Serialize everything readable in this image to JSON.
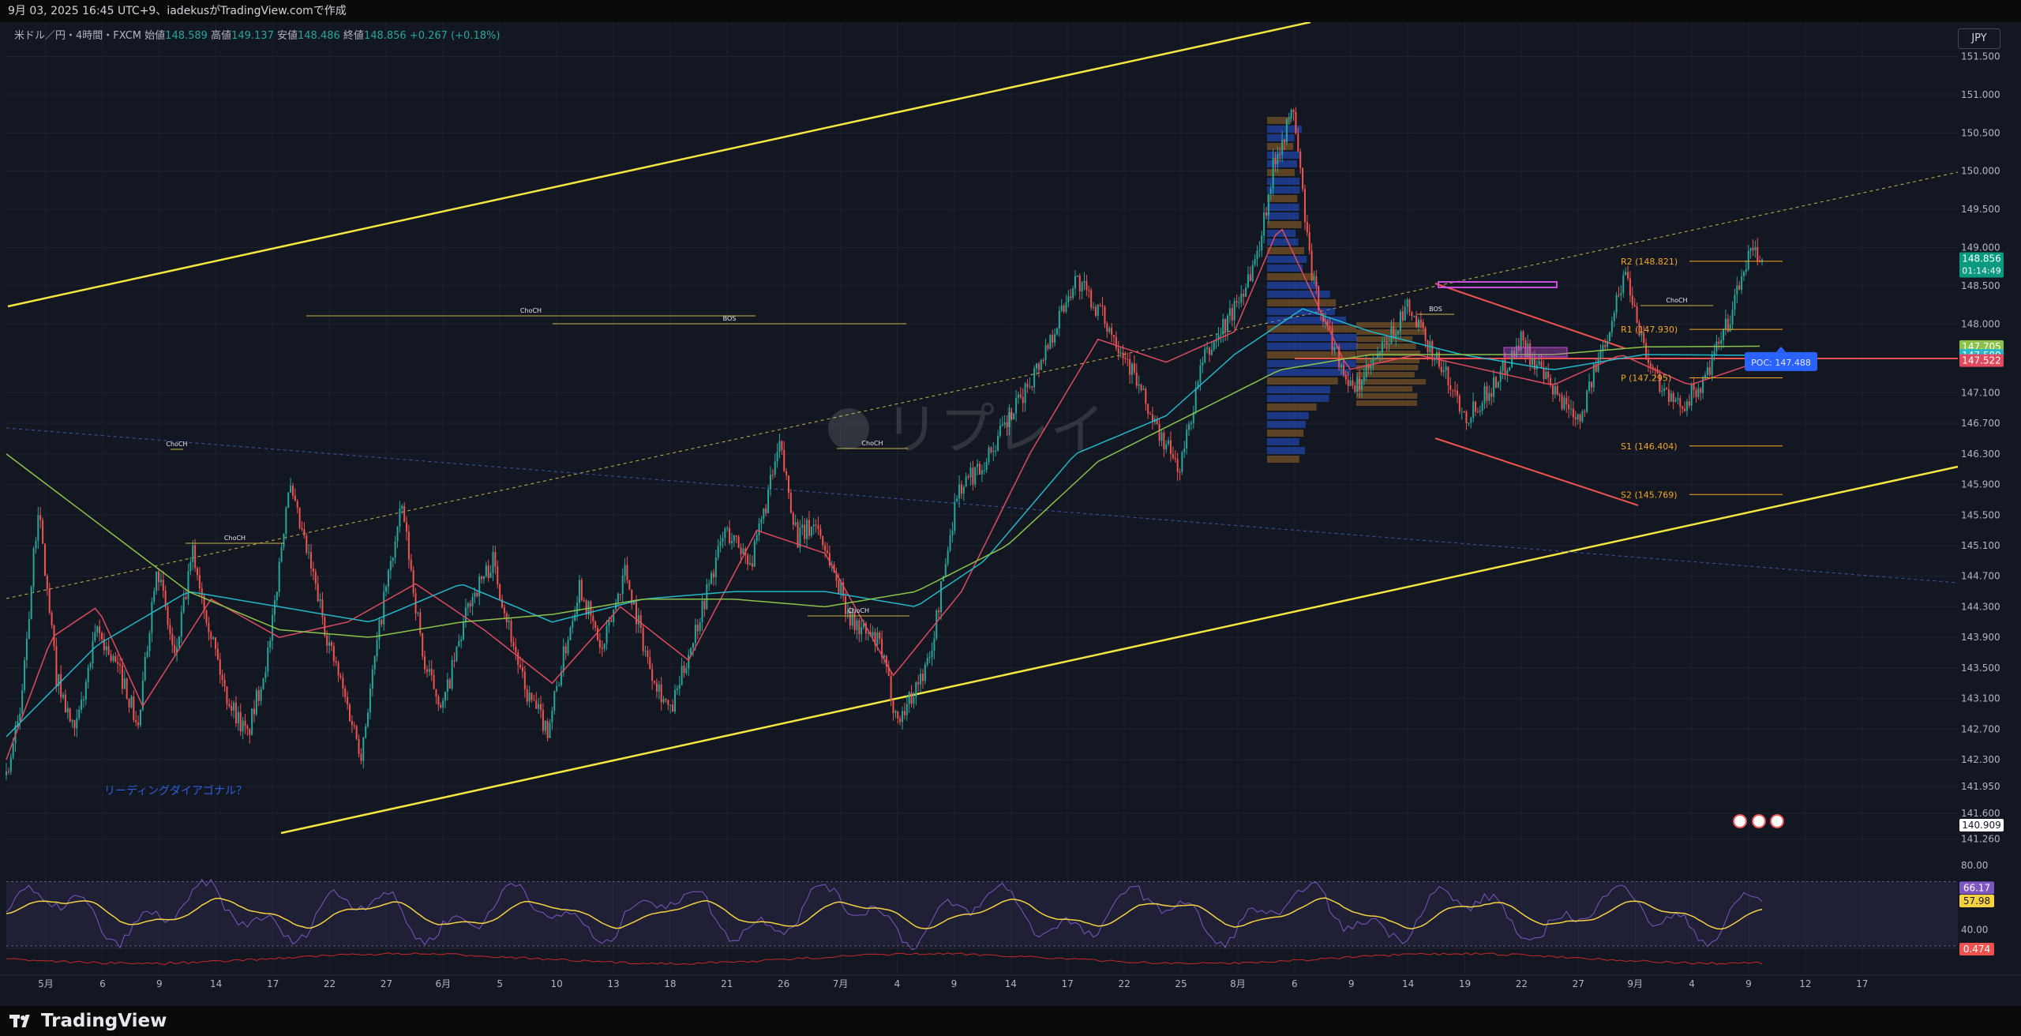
{
  "header": {
    "caption": "9月 03, 2025 16:45 UTC+9、iadekusがTradingView.comで作成"
  },
  "symbol": {
    "name": "米ドル／円・4時間・FXCM",
    "open_label": "始値",
    "open": "148.589",
    "high_label": "高値",
    "high": "149.137",
    "low_label": "安値",
    "low": "148.486",
    "close_label": "終値",
    "close": "148.856",
    "change": "+0.267 (+0.18%)"
  },
  "currency_button": "JPY",
  "watermark": "リプレイ",
  "brand": "TradingView",
  "colors": {
    "background": "#131722",
    "up": "#26a69a",
    "down": "#ef5350",
    "channel": "#f5e642",
    "ma_fast": "#e04a5f",
    "ma_mid": "#22b7c9",
    "ma_slow": "#8bc34a",
    "rsi": "#7e57c2",
    "rsi_ma": "#f5d242",
    "pivot": "#f5a623",
    "poc": "#2962ff"
  },
  "chart_data": {
    "type": "candlestick",
    "timeframe": "4時間",
    "ylim": [
      141.05,
      151.95
    ],
    "y_ticks": [
      "151.500",
      "151.000",
      "150.500",
      "150.000",
      "149.500",
      "149.000",
      "148.500",
      "148.000",
      "147.100",
      "146.700",
      "146.300",
      "145.900",
      "145.500",
      "145.100",
      "144.700",
      "144.300",
      "143.900",
      "143.500",
      "143.100",
      "142.700",
      "142.300",
      "141.950",
      "141.600",
      "141.260"
    ],
    "x_ticks": [
      "5月",
      "6",
      "9",
      "14",
      "17",
      "22",
      "27",
      "6月",
      "5",
      "10",
      "13",
      "18",
      "21",
      "26",
      "7月",
      "4",
      "9",
      "14",
      "17",
      "22",
      "25",
      "8月",
      "6",
      "9",
      "14",
      "19",
      "22",
      "27",
      "9月",
      "4",
      "9",
      "12",
      "17"
    ],
    "price_labels": [
      {
        "label": "148.856",
        "sub": "01:14:49",
        "value": 148.856,
        "color": "#089981"
      },
      {
        "label": "147.705",
        "value": 147.705,
        "color": "#8bc34a"
      },
      {
        "label": "147.589",
        "value": 147.589,
        "color": "#22b7c9"
      },
      {
        "label": "147.522",
        "value": 147.522,
        "color": "#e04a5f"
      },
      {
        "label": "140.909",
        "value": 140.909,
        "color": "#ffffff"
      }
    ],
    "pivots": [
      {
        "label": "R2 (148.821)",
        "value": 148.821
      },
      {
        "label": "R1 (147.930)",
        "value": 147.93
      },
      {
        "label": "P (147.295)",
        "value": 147.295
      },
      {
        "label": "S1 (146.404)",
        "value": 146.404
      },
      {
        "label": "S2 (145.769)",
        "value": 145.769
      }
    ],
    "poc": {
      "label": "POC: 147.488",
      "value": 147.488
    },
    "annotations": [
      {
        "text": "リーディングダイアゴナル？",
        "type": "note"
      },
      {
        "text": "ChoCH",
        "type": "structure"
      },
      {
        "text": "BOS",
        "type": "structure"
      }
    ],
    "series": [
      {
        "name": "",
        "kind": "ohlc",
        "anchors": [
          [
            0,
            142.1
          ],
          [
            6,
            142.9
          ],
          [
            14,
            145.6
          ],
          [
            22,
            143.4
          ],
          [
            30,
            142.6
          ],
          [
            40,
            144.0
          ],
          [
            52,
            143.3
          ],
          [
            58,
            142.7
          ],
          [
            66,
            144.9
          ],
          [
            74,
            143.6
          ],
          [
            82,
            145.0
          ],
          [
            96,
            143.2
          ],
          [
            106,
            142.6
          ],
          [
            116,
            143.8
          ],
          [
            124,
            145.9
          ],
          [
            134,
            144.8
          ],
          [
            142,
            143.8
          ],
          [
            156,
            142.4
          ],
          [
            166,
            144.4
          ],
          [
            174,
            145.6
          ],
          [
            184,
            143.5
          ],
          [
            192,
            143.0
          ],
          [
            204,
            144.4
          ],
          [
            214,
            144.9
          ],
          [
            228,
            143.2
          ],
          [
            238,
            142.7
          ],
          [
            252,
            144.6
          ],
          [
            262,
            143.7
          ],
          [
            272,
            144.8
          ],
          [
            282,
            143.6
          ],
          [
            292,
            142.9
          ],
          [
            304,
            144.1
          ],
          [
            316,
            145.3
          ],
          [
            328,
            144.9
          ],
          [
            340,
            146.4
          ],
          [
            348,
            145.2
          ],
          [
            356,
            145.4
          ],
          [
            372,
            144.1
          ],
          [
            384,
            143.8
          ],
          [
            392,
            142.8
          ],
          [
            406,
            143.6
          ],
          [
            418,
            145.8
          ],
          [
            430,
            146.2
          ],
          [
            444,
            146.9
          ],
          [
            456,
            147.6
          ],
          [
            470,
            148.6
          ],
          [
            482,
            148.1
          ],
          [
            492,
            147.6
          ],
          [
            506,
            146.6
          ],
          [
            516,
            146.1
          ],
          [
            526,
            147.5
          ],
          [
            540,
            148.2
          ],
          [
            550,
            148.9
          ],
          [
            558,
            150.2
          ],
          [
            566,
            150.8
          ],
          [
            574,
            148.6
          ],
          [
            580,
            148.0
          ],
          [
            592,
            147.1
          ],
          [
            604,
            147.6
          ],
          [
            616,
            148.2
          ],
          [
            628,
            147.6
          ],
          [
            642,
            146.8
          ],
          [
            654,
            147.2
          ],
          [
            666,
            147.8
          ],
          [
            680,
            147.1
          ],
          [
            692,
            146.8
          ],
          [
            702,
            147.7
          ],
          [
            712,
            148.7
          ],
          [
            722,
            147.5
          ],
          [
            734,
            146.9
          ],
          [
            746,
            147.2
          ],
          [
            758,
            148.1
          ],
          [
            766,
            148.9
          ],
          [
            772,
            148.86
          ]
        ]
      },
      {
        "name": "",
        "kind": "ma",
        "anchors": [
          [
            0,
            142.3
          ],
          [
            20,
            143.9
          ],
          [
            40,
            144.3
          ],
          [
            60,
            143.0
          ],
          [
            90,
            144.4
          ],
          [
            120,
            143.9
          ],
          [
            150,
            144.1
          ],
          [
            180,
            144.6
          ],
          [
            210,
            144.0
          ],
          [
            240,
            143.3
          ],
          [
            270,
            144.3
          ],
          [
            300,
            143.6
          ],
          [
            330,
            145.3
          ],
          [
            360,
            145.0
          ],
          [
            390,
            143.4
          ],
          [
            420,
            144.5
          ],
          [
            450,
            146.3
          ],
          [
            480,
            147.8
          ],
          [
            510,
            147.5
          ],
          [
            540,
            147.9
          ],
          [
            560,
            149.3
          ],
          [
            590,
            147.4
          ],
          [
            620,
            147.6
          ],
          [
            650,
            147.4
          ],
          [
            680,
            147.2
          ],
          [
            710,
            147.6
          ],
          [
            740,
            147.2
          ],
          [
            772,
            147.52
          ]
        ]
      },
      {
        "name": "",
        "kind": "ma",
        "anchors": [
          [
            0,
            142.6
          ],
          [
            40,
            143.8
          ],
          [
            80,
            144.5
          ],
          [
            120,
            144.3
          ],
          [
            160,
            144.1
          ],
          [
            200,
            144.6
          ],
          [
            240,
            144.1
          ],
          [
            280,
            144.4
          ],
          [
            320,
            144.5
          ],
          [
            360,
            144.5
          ],
          [
            400,
            144.3
          ],
          [
            430,
            144.9
          ],
          [
            470,
            146.3
          ],
          [
            510,
            146.8
          ],
          [
            540,
            147.6
          ],
          [
            570,
            148.2
          ],
          [
            600,
            147.9
          ],
          [
            640,
            147.6
          ],
          [
            680,
            147.4
          ],
          [
            720,
            147.6
          ],
          [
            772,
            147.59
          ]
        ]
      },
      {
        "name": "",
        "kind": "ma",
        "anchors": [
          [
            0,
            146.3
          ],
          [
            40,
            145.4
          ],
          [
            80,
            144.5
          ],
          [
            120,
            144.0
          ],
          [
            160,
            143.9
          ],
          [
            200,
            144.1
          ],
          [
            240,
            144.2
          ],
          [
            280,
            144.4
          ],
          [
            320,
            144.4
          ],
          [
            360,
            144.3
          ],
          [
            400,
            144.5
          ],
          [
            440,
            145.1
          ],
          [
            480,
            146.2
          ],
          [
            520,
            146.8
          ],
          [
            560,
            147.4
          ],
          [
            600,
            147.6
          ],
          [
            640,
            147.6
          ],
          [
            680,
            147.6
          ],
          [
            720,
            147.7
          ],
          [
            772,
            147.71
          ]
        ]
      }
    ],
    "rsi": {
      "ylim": [
        30,
        85
      ],
      "ticks": [
        "80.00",
        "40.00"
      ],
      "upper": 70,
      "lower": 30,
      "value": "66.17",
      "ma_value": "57.98"
    },
    "lower_indicator": {
      "value": "0.474"
    },
    "candle_count": 773
  }
}
